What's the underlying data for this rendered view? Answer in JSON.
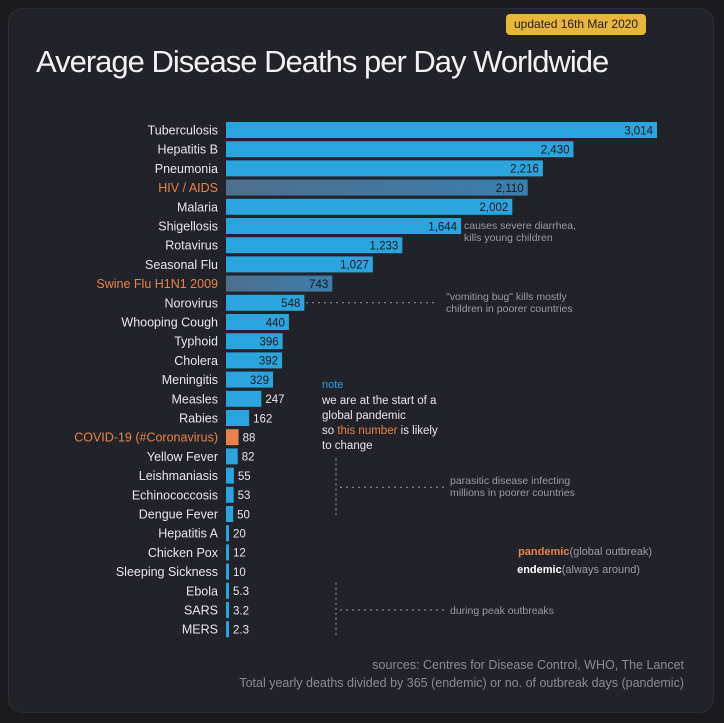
{
  "header": {
    "updated_badge": "updated 16th Mar 2020",
    "title": "Average Disease Deaths per Day Worldwide"
  },
  "chart_data": {
    "type": "bar",
    "orientation": "horizontal",
    "title": "Average Disease Deaths per Day Worldwide",
    "xlabel": "",
    "ylabel": "",
    "grid": false,
    "categories": [
      "Tuberculosis",
      "Hepatitis B",
      "Pneumonia",
      "HIV / AIDS",
      "Malaria",
      "Shigellosis",
      "Rotavirus",
      "Seasonal Flu",
      "Swine Flu H1N1 2009",
      "Norovirus",
      "Whooping Cough",
      "Typhoid",
      "Cholera",
      "Meningitis",
      "Measles",
      "Rabies",
      "COVID-19 (#Coronavirus)",
      "Yellow Fever",
      "Leishmaniasis",
      "Echinococcosis",
      "Dengue Fever",
      "Hepatitis A",
      "Chicken Pox",
      "Sleeping Sickness",
      "Ebola",
      "SARS",
      "MERS"
    ],
    "values": [
      3014,
      2430,
      2216,
      2110,
      2002,
      1644,
      1233,
      1027,
      743,
      548,
      440,
      396,
      392,
      329,
      247,
      162,
      88,
      82,
      55,
      53,
      50,
      20,
      12,
      10,
      5.3,
      3.2,
      2.3
    ],
    "value_labels": [
      "3,014",
      "2,430",
      "2,216",
      "2,110",
      "2,002",
      "1,644",
      "1,233",
      "1,027",
      "743",
      "548",
      "440",
      "396",
      "392",
      "329",
      "247",
      "162",
      "88",
      "82",
      "55",
      "53",
      "50",
      "20",
      "12",
      "10",
      "5.3",
      "3.2",
      "2.3"
    ],
    "kinds": [
      "endemic",
      "endemic",
      "endemic",
      "pandemic",
      "endemic",
      "endemic",
      "endemic",
      "endemic",
      "pandemic",
      "endemic",
      "endemic",
      "endemic",
      "endemic",
      "endemic",
      "endemic",
      "endemic",
      "pandemic",
      "endemic",
      "endemic",
      "endemic",
      "endemic",
      "endemic",
      "endemic",
      "endemic",
      "pandemic",
      "pandemic",
      "pandemic"
    ],
    "highlight_labels": [
      "HIV / AIDS",
      "Swine Flu H1N1 2009",
      "COVID-19 (#Coronavirus)"
    ],
    "xlim": [
      0,
      3014
    ],
    "colors": {
      "endemic": "#2aa5dd",
      "pandemic_bar": "#3a7fae",
      "covid_bar": "#e8824a",
      "label": "#e6e6ea",
      "label_highlight": "#e8824a",
      "value_text": "#1a1a1e",
      "annotation": "#9a9ba3",
      "note_accent": "#2aa5dd"
    },
    "annotations": {
      "shigellosis": [
        "causes severe diarrhea,",
        "kills young children"
      ],
      "norovirus": [
        "\"vomiting bug\" kills mostly",
        "children in poorer countries"
      ],
      "parasitic": [
        "parasitic disease infecting",
        "millions in poorer countries"
      ],
      "outbreaks": [
        "during peak outbreaks"
      ],
      "note_title": "note",
      "note_lines": [
        "we are at the start of a",
        "global pandemic",
        "so ",
        "this number",
        " is likely",
        "to change"
      ]
    },
    "legend": {
      "pandemic_term": "pandemic",
      "pandemic_desc": "(global outbreak)",
      "endemic_term": "endemic",
      "endemic_desc": "(always around)"
    }
  },
  "footer": {
    "sources": "sources: Centres for Disease Control, WHO, The Lancet",
    "method": "Total yearly deaths divided by 365 (endemic) or no. of outbreak days (pandemic)"
  }
}
